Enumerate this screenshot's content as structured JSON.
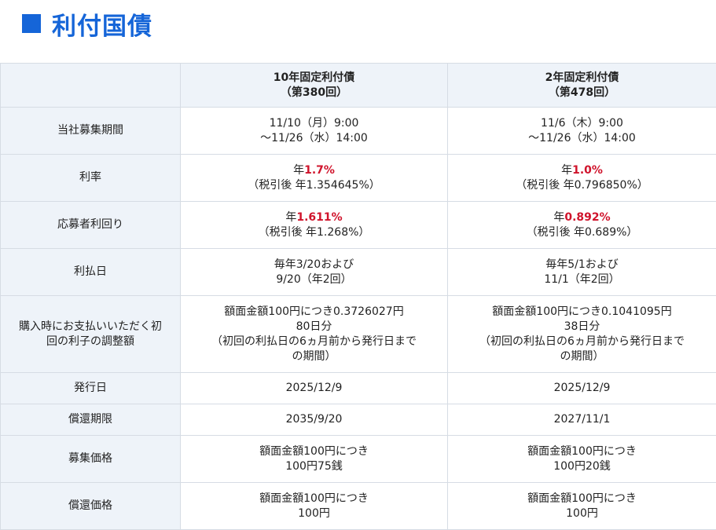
{
  "heading": {
    "title": "利付国債"
  },
  "table": {
    "columns": [
      {
        "line1": "10年固定利付債",
        "line2": "（第380回）"
      },
      {
        "line1": "2年固定利付債",
        "line2": "（第478回）"
      }
    ],
    "rows": {
      "period": {
        "label": "当社募集期間",
        "c1": [
          "11/10（月）9:00",
          "〜11/26（水）14:00"
        ],
        "c2": [
          "11/6（木）9:00",
          "〜11/26（水）14:00"
        ]
      },
      "rate": {
        "label": "利率",
        "c1": {
          "prefix": "年",
          "value": "1.7%",
          "sub": "（税引後 年1.354645%）"
        },
        "c2": {
          "prefix": "年",
          "value": "1.0%",
          "sub": "（税引後 年0.796850%）"
        }
      },
      "yield": {
        "label": "応募者利回り",
        "c1": {
          "prefix": "年",
          "value": "1.611%",
          "sub": "（税引後 年1.268%）"
        },
        "c2": {
          "prefix": "年",
          "value": "0.892%",
          "sub": "（税引後 年0.689%）"
        }
      },
      "payment": {
        "label": "利払日",
        "c1": [
          "毎年3/20および",
          "9/20（年2回）"
        ],
        "c2": [
          "毎年5/1および",
          "11/1（年2回）"
        ]
      },
      "accrued": {
        "label_line1": "購入時にお支払いいただく初",
        "label_line2": "回の利子の調整額",
        "c1": [
          "額面金額100円につき0.3726027円",
          "80日分",
          "（初回の利払日の6ヵ月前から発行日まで",
          "の期間）"
        ],
        "c2": [
          "額面金額100円につき0.1041095円",
          "38日分",
          "（初回の利払日の6ヵ月前から発行日まで",
          "の期間）"
        ]
      },
      "issue": {
        "label": "発行日",
        "c1": "2025/12/9",
        "c2": "2025/12/9"
      },
      "maturity": {
        "label": "償還期限",
        "c1": "2035/9/20",
        "c2": "2027/11/1"
      },
      "offer": {
        "label": "募集価格",
        "c1": [
          "額面金額100円につき",
          "100円75銭"
        ],
        "c2": [
          "額面金額100円につき",
          "100円20銭"
        ]
      },
      "redemption": {
        "label": "償還価格",
        "c1": [
          "額面金額100円につき",
          "100円"
        ],
        "c2": [
          "額面金額100円につき",
          "100円"
        ]
      }
    }
  },
  "colors": {
    "accent": "#1565d8",
    "highlight": "#d0142c",
    "header_bg": "#eef3f9",
    "border": "#d6dce4"
  }
}
